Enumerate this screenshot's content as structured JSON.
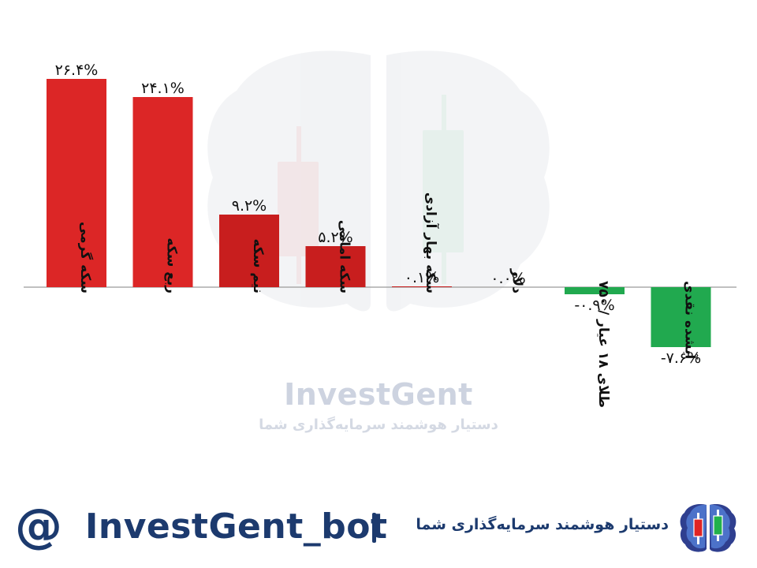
{
  "chart_data": {
    "type": "bar",
    "categories": [
      "سکه گرمی",
      "ربع سکه",
      "نیم سکه",
      "سکه امامی",
      "سکه بهار آزادی",
      "دلار",
      "طلای ۱۸ عیار / ۷۵۰",
      "آبشده نقدی"
    ],
    "values": [
      26.4,
      24.1,
      9.2,
      5.2,
      0.1,
      0.0,
      -0.9,
      -7.6
    ],
    "value_labels": [
      "۲۶.۴%",
      "۲۴.۱%",
      "۹.۲%",
      "۵.۲%",
      "۰.۱%",
      "۰.۰%",
      "-۰.۹%",
      "-۷.۶%"
    ],
    "ylim": [
      -9,
      28
    ],
    "grid": false,
    "colors": {
      "strong_positive": "#dc2626",
      "positive": "#c81e1e",
      "negative": "#21a94f",
      "axis": "#9a9a9a"
    }
  },
  "watermark": {
    "brand": "InvestGent",
    "tagline": "دستیار هوشمند سرمایه‌گذاری  شما"
  },
  "footer": {
    "at_symbol": "@",
    "handle": "InvestGent_bot",
    "tagline": "دستیار هوشمند سرمایه‌گذاری  شما",
    "logo_icon": "brain-candlestick-icon",
    "brand_color": "#1c3a6e"
  }
}
